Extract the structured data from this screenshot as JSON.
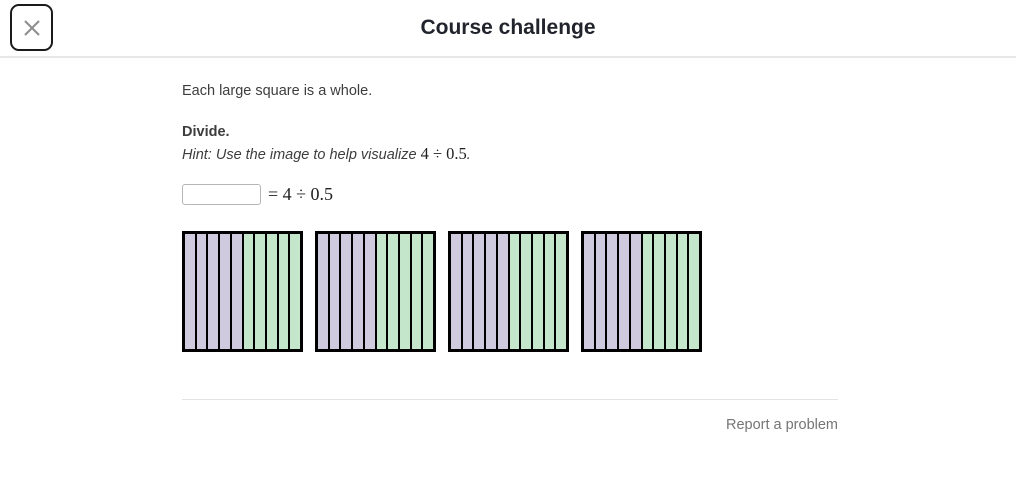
{
  "header": {
    "title": "Course challenge",
    "close_icon": "x-icon"
  },
  "exercise": {
    "intro": "Each large square is a whole.",
    "prompt": "Divide.",
    "hint_prefix": "Hint: Use the image to help visualize ",
    "hint_math": "4 ÷ 0.5",
    "hint_suffix": ".",
    "answer": {
      "input_value": "",
      "equation": "= 4 ÷ 0.5"
    },
    "diagram": {
      "squares": 4,
      "strips_per_square": 10,
      "purple_strips_per_square": 5,
      "green_strips_per_square": 5,
      "purple_color": "#cfcade",
      "green_color": "#c4e7cb",
      "border_color": "#000000"
    }
  },
  "footer": {
    "report_link": "Report a problem"
  }
}
